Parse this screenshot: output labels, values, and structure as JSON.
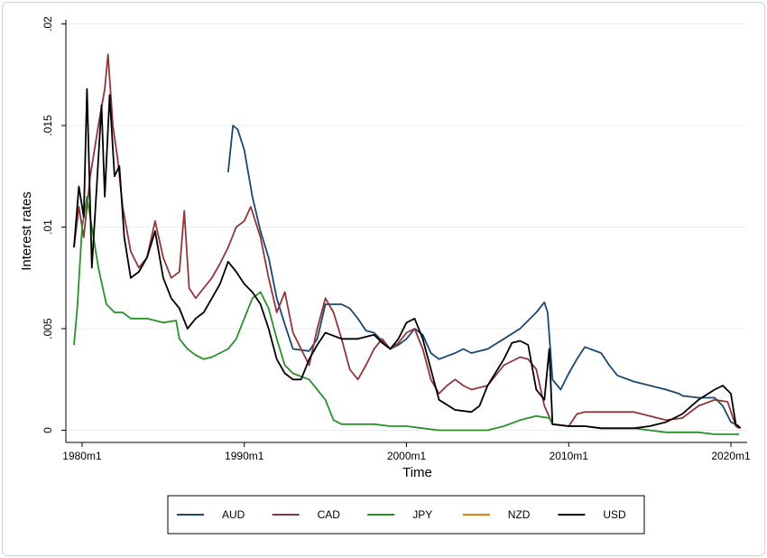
{
  "chart_data": {
    "type": "line",
    "xlabel": "Time",
    "ylabel": "Interest rates",
    "xlim": [
      1979.0,
      2021.0
    ],
    "ylim": [
      -0.0006,
      0.0202
    ],
    "x_ticks": [
      {
        "value": 1980,
        "label": "1980m1"
      },
      {
        "value": 1990,
        "label": "1990m1"
      },
      {
        "value": 2000,
        "label": "2000m1"
      },
      {
        "value": 2010,
        "label": "2010m1"
      },
      {
        "value": 2020,
        "label": "2020m1"
      }
    ],
    "y_ticks": [
      {
        "value": 0,
        "label": "0"
      },
      {
        "value": 0.005,
        "label": ".005"
      },
      {
        "value": 0.01,
        "label": ".01"
      },
      {
        "value": 0.015,
        "label": ".015"
      },
      {
        "value": 0.02,
        "label": ".02"
      }
    ],
    "grid": true,
    "legend_position": "bottom",
    "series": [
      {
        "name": "AUD",
        "color": "#1a476f",
        "points": [
          [
            1989.0,
            0.0127
          ],
          [
            1989.3,
            0.015
          ],
          [
            1989.6,
            0.0148
          ],
          [
            1990.0,
            0.0138
          ],
          [
            1990.5,
            0.0115
          ],
          [
            1991.0,
            0.0098
          ],
          [
            1991.5,
            0.0085
          ],
          [
            1992.0,
            0.0065
          ],
          [
            1992.5,
            0.0052
          ],
          [
            1993.0,
            0.004
          ],
          [
            1994.0,
            0.0039
          ],
          [
            1994.5,
            0.0045
          ],
          [
            1995.0,
            0.0062
          ],
          [
            1996.0,
            0.0062
          ],
          [
            1996.5,
            0.006
          ],
          [
            1997.0,
            0.0055
          ],
          [
            1997.5,
            0.0049
          ],
          [
            1998.0,
            0.0048
          ],
          [
            1999.0,
            0.004
          ],
          [
            1999.5,
            0.0042
          ],
          [
            2000.0,
            0.0045
          ],
          [
            2000.5,
            0.005
          ],
          [
            2001.0,
            0.0047
          ],
          [
            2001.5,
            0.0038
          ],
          [
            2002.0,
            0.0035
          ],
          [
            2003.0,
            0.0038
          ],
          [
            2003.5,
            0.004
          ],
          [
            2004.0,
            0.0038
          ],
          [
            2005.0,
            0.004
          ],
          [
            2006.0,
            0.0045
          ],
          [
            2007.0,
            0.005
          ],
          [
            2008.0,
            0.0058
          ],
          [
            2008.5,
            0.0063
          ],
          [
            2008.7,
            0.0058
          ],
          [
            2009.0,
            0.0025
          ],
          [
            2009.5,
            0.002
          ],
          [
            2010.0,
            0.0028
          ],
          [
            2010.5,
            0.0035
          ],
          [
            2011.0,
            0.0041
          ],
          [
            2012.0,
            0.0038
          ],
          [
            2012.5,
            0.0032
          ],
          [
            2013.0,
            0.0027
          ],
          [
            2014.0,
            0.0024
          ],
          [
            2015.0,
            0.0022
          ],
          [
            2016.0,
            0.002
          ],
          [
            2016.8,
            0.0018
          ],
          [
            2017.0,
            0.0017
          ],
          [
            2018.0,
            0.0016
          ],
          [
            2019.0,
            0.0016
          ],
          [
            2019.5,
            0.0012
          ],
          [
            2020.0,
            0.0004
          ],
          [
            2020.5,
            0.0002
          ]
        ]
      },
      {
        "name": "CAD",
        "color": "#90353b",
        "points": [
          [
            1979.5,
            0.009
          ],
          [
            1979.8,
            0.011
          ],
          [
            1980.1,
            0.0095
          ],
          [
            1980.5,
            0.0125
          ],
          [
            1980.8,
            0.014
          ],
          [
            1981.0,
            0.015
          ],
          [
            1981.4,
            0.0168
          ],
          [
            1981.6,
            0.0185
          ],
          [
            1981.9,
            0.015
          ],
          [
            1982.2,
            0.0133
          ],
          [
            1982.5,
            0.011
          ],
          [
            1983.0,
            0.0088
          ],
          [
            1983.5,
            0.008
          ],
          [
            1984.0,
            0.0085
          ],
          [
            1984.5,
            0.0103
          ],
          [
            1985.0,
            0.0085
          ],
          [
            1985.5,
            0.0075
          ],
          [
            1986.0,
            0.0078
          ],
          [
            1986.3,
            0.0108
          ],
          [
            1986.6,
            0.007
          ],
          [
            1987.0,
            0.0065
          ],
          [
            1987.5,
            0.007
          ],
          [
            1988.0,
            0.0075
          ],
          [
            1988.5,
            0.0082
          ],
          [
            1989.0,
            0.009
          ],
          [
            1989.5,
            0.01
          ],
          [
            1990.0,
            0.0103
          ],
          [
            1990.4,
            0.011
          ],
          [
            1991.0,
            0.0095
          ],
          [
            1991.5,
            0.0075
          ],
          [
            1992.0,
            0.0058
          ],
          [
            1992.5,
            0.0068
          ],
          [
            1993.0,
            0.0048
          ],
          [
            1993.5,
            0.004
          ],
          [
            1994.0,
            0.0032
          ],
          [
            1994.5,
            0.005
          ],
          [
            1995.0,
            0.0065
          ],
          [
            1995.5,
            0.0058
          ],
          [
            1996.0,
            0.0045
          ],
          [
            1996.5,
            0.003
          ],
          [
            1997.0,
            0.0025
          ],
          [
            1997.5,
            0.0032
          ],
          [
            1998.0,
            0.004
          ],
          [
            1998.5,
            0.0045
          ],
          [
            1999.0,
            0.004
          ],
          [
            1999.5,
            0.0043
          ],
          [
            2000.0,
            0.0048
          ],
          [
            2000.5,
            0.005
          ],
          [
            2001.0,
            0.004
          ],
          [
            2001.5,
            0.0025
          ],
          [
            2002.0,
            0.0018
          ],
          [
            2002.5,
            0.0022
          ],
          [
            2003.0,
            0.0025
          ],
          [
            2003.5,
            0.0022
          ],
          [
            2004.0,
            0.002
          ],
          [
            2005.0,
            0.0022
          ],
          [
            2006.0,
            0.0032
          ],
          [
            2007.0,
            0.0036
          ],
          [
            2007.5,
            0.0035
          ],
          [
            2008.0,
            0.003
          ],
          [
            2008.5,
            0.0012
          ],
          [
            2009.0,
            0.0003
          ],
          [
            2010.0,
            0.0002
          ],
          [
            2010.5,
            0.0008
          ],
          [
            2011.0,
            0.0009
          ],
          [
            2012.0,
            0.0009
          ],
          [
            2013.0,
            0.0009
          ],
          [
            2014.0,
            0.0009
          ],
          [
            2015.0,
            0.0007
          ],
          [
            2016.0,
            0.0005
          ],
          [
            2017.0,
            0.0006
          ],
          [
            2018.0,
            0.0012
          ],
          [
            2019.0,
            0.0015
          ],
          [
            2019.8,
            0.0014
          ],
          [
            2020.3,
            0.0002
          ],
          [
            2020.5,
            0.0001
          ]
        ]
      },
      {
        "name": "JPY",
        "color": "#2a9129",
        "points": [
          [
            1979.5,
            0.0042
          ],
          [
            1979.7,
            0.006
          ],
          [
            1980.0,
            0.01
          ],
          [
            1980.3,
            0.0115
          ],
          [
            1980.6,
            0.01
          ],
          [
            1981.0,
            0.008
          ],
          [
            1981.5,
            0.0062
          ],
          [
            1982.0,
            0.0058
          ],
          [
            1982.5,
            0.0058
          ],
          [
            1983.0,
            0.0055
          ],
          [
            1984.0,
            0.0055
          ],
          [
            1985.0,
            0.0053
          ],
          [
            1985.8,
            0.0054
          ],
          [
            1986.0,
            0.0045
          ],
          [
            1986.5,
            0.004
          ],
          [
            1987.0,
            0.0037
          ],
          [
            1987.5,
            0.0035
          ],
          [
            1988.0,
            0.0036
          ],
          [
            1988.5,
            0.0038
          ],
          [
            1989.0,
            0.004
          ],
          [
            1989.5,
            0.0045
          ],
          [
            1990.0,
            0.0055
          ],
          [
            1990.5,
            0.0065
          ],
          [
            1991.0,
            0.0068
          ],
          [
            1991.5,
            0.006
          ],
          [
            1992.0,
            0.0045
          ],
          [
            1992.5,
            0.0032
          ],
          [
            1993.0,
            0.0028
          ],
          [
            1994.0,
            0.0025
          ],
          [
            1994.5,
            0.002
          ],
          [
            1995.0,
            0.0015
          ],
          [
            1995.5,
            0.0005
          ],
          [
            1996.0,
            0.0003
          ],
          [
            1997.0,
            0.0003
          ],
          [
            1998.0,
            0.0003
          ],
          [
            1999.0,
            0.0002
          ],
          [
            2000.0,
            0.0002
          ],
          [
            2001.0,
            0.0001
          ],
          [
            2002.0,
            0.0
          ],
          [
            2003.0,
            0.0
          ],
          [
            2004.0,
            0.0
          ],
          [
            2005.0,
            0.0
          ],
          [
            2006.0,
            0.0002
          ],
          [
            2007.0,
            0.0005
          ],
          [
            2008.0,
            0.0007
          ],
          [
            2008.8,
            0.0006
          ],
          [
            2009.0,
            0.0003
          ],
          [
            2010.0,
            0.0002
          ],
          [
            2011.0,
            0.0002
          ],
          [
            2012.0,
            0.0001
          ],
          [
            2013.0,
            0.0001
          ],
          [
            2014.0,
            0.0001
          ],
          [
            2015.0,
            0.0
          ],
          [
            2016.0,
            -0.0001
          ],
          [
            2017.0,
            -0.0001
          ],
          [
            2018.0,
            -0.0001
          ],
          [
            2019.0,
            -0.0002
          ],
          [
            2020.0,
            -0.0002
          ],
          [
            2020.5,
            -0.0002
          ]
        ]
      },
      {
        "name": "NZD",
        "color": "#e87d0e",
        "points": []
      },
      {
        "name": "USD",
        "color": "#000000",
        "points": [
          [
            1979.5,
            0.009
          ],
          [
            1979.8,
            0.012
          ],
          [
            1980.1,
            0.0105
          ],
          [
            1980.3,
            0.0168
          ],
          [
            1980.6,
            0.008
          ],
          [
            1980.9,
            0.012
          ],
          [
            1981.2,
            0.016
          ],
          [
            1981.4,
            0.0115
          ],
          [
            1981.7,
            0.0165
          ],
          [
            1982.0,
            0.0125
          ],
          [
            1982.3,
            0.013
          ],
          [
            1982.6,
            0.0095
          ],
          [
            1983.0,
            0.0075
          ],
          [
            1983.5,
            0.0078
          ],
          [
            1984.0,
            0.0085
          ],
          [
            1984.5,
            0.0098
          ],
          [
            1985.0,
            0.0075
          ],
          [
            1985.5,
            0.0065
          ],
          [
            1986.0,
            0.006
          ],
          [
            1986.5,
            0.005
          ],
          [
            1987.0,
            0.0055
          ],
          [
            1987.5,
            0.0058
          ],
          [
            1988.0,
            0.0065
          ],
          [
            1988.5,
            0.0072
          ],
          [
            1989.0,
            0.0083
          ],
          [
            1989.5,
            0.0078
          ],
          [
            1990.0,
            0.0072
          ],
          [
            1990.5,
            0.0068
          ],
          [
            1991.0,
            0.0062
          ],
          [
            1991.5,
            0.005
          ],
          [
            1992.0,
            0.0035
          ],
          [
            1992.5,
            0.0028
          ],
          [
            1993.0,
            0.0025
          ],
          [
            1993.5,
            0.0025
          ],
          [
            1994.0,
            0.0035
          ],
          [
            1994.5,
            0.0042
          ],
          [
            1995.0,
            0.0048
          ],
          [
            1996.0,
            0.0045
          ],
          [
            1997.0,
            0.0045
          ],
          [
            1998.0,
            0.0047
          ],
          [
            1998.5,
            0.0043
          ],
          [
            1999.0,
            0.004
          ],
          [
            1999.5,
            0.0045
          ],
          [
            2000.0,
            0.0053
          ],
          [
            2000.5,
            0.0055
          ],
          [
            2001.0,
            0.0045
          ],
          [
            2001.5,
            0.003
          ],
          [
            2002.0,
            0.0015
          ],
          [
            2003.0,
            0.001
          ],
          [
            2004.0,
            0.0009
          ],
          [
            2004.5,
            0.0012
          ],
          [
            2005.0,
            0.0022
          ],
          [
            2006.0,
            0.0035
          ],
          [
            2006.5,
            0.0043
          ],
          [
            2007.0,
            0.0044
          ],
          [
            2007.5,
            0.0042
          ],
          [
            2008.0,
            0.002
          ],
          [
            2008.5,
            0.0015
          ],
          [
            2008.8,
            0.004
          ],
          [
            2009.0,
            0.0003
          ],
          [
            2010.0,
            0.0002
          ],
          [
            2011.0,
            0.0002
          ],
          [
            2012.0,
            0.0001
          ],
          [
            2013.0,
            0.0001
          ],
          [
            2014.0,
            0.0001
          ],
          [
            2015.0,
            0.0002
          ],
          [
            2016.0,
            0.0004
          ],
          [
            2017.0,
            0.0008
          ],
          [
            2018.0,
            0.0015
          ],
          [
            2019.0,
            0.002
          ],
          [
            2019.5,
            0.0022
          ],
          [
            2020.0,
            0.0018
          ],
          [
            2020.3,
            0.0003
          ],
          [
            2020.6,
            0.0001
          ]
        ]
      }
    ]
  }
}
